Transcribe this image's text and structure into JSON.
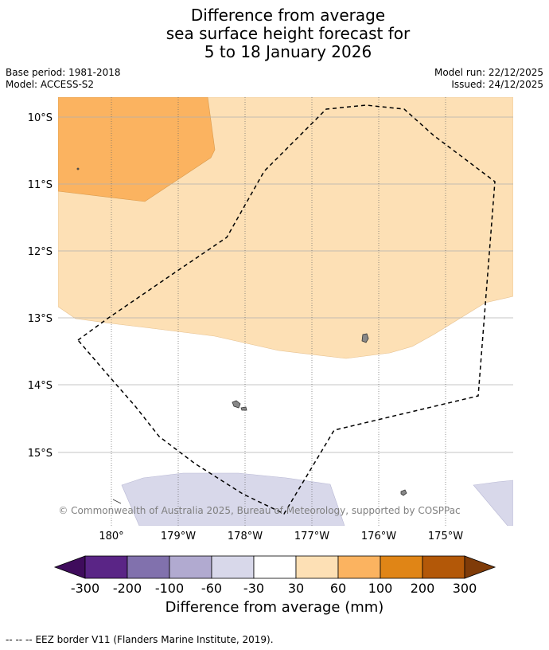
{
  "title": {
    "line1": "Difference from average",
    "line2": "sea surface height forecast for",
    "line3": "5 to 18 January 2026"
  },
  "meta": {
    "base_period": "Base period: 1981-2018",
    "model": "Model: ACCESS-S2",
    "model_run": "Model run: 22/12/2025",
    "issued": "Issued: 24/12/2025"
  },
  "map": {
    "lat_labels": [
      "10°S",
      "11°S",
      "12°S",
      "13°S",
      "14°S",
      "15°S"
    ],
    "lon_labels": [
      "180°",
      "179°W",
      "178°W",
      "177°W",
      "176°W",
      "175°W"
    ],
    "attribution": "© Commonwealth of Australia 2025, Bureau of Meteorology, supported by COSPPac",
    "category_colors": {
      "light_orange": "#fde0b5",
      "orange": "#fbb360",
      "light_purple": "#d8d8ea"
    }
  },
  "colorbar": {
    "title": "Difference from average (mm)",
    "labels": [
      "-300",
      "-200",
      "-100",
      "-60",
      "-30",
      "30",
      "60",
      "100",
      "200",
      "300"
    ],
    "colors": [
      "#3f0c5c",
      "#5a2586",
      "#8171ad",
      "#b1aad0",
      "#d8d8ea",
      "#ffffff",
      "#fde0b5",
      "#fbb360",
      "#e08516",
      "#b35808",
      "#7f3b08"
    ]
  },
  "footer": {
    "legend_symbol": "--  --  --",
    "legend_text": "EEZ border V11 (Flanders Marine Institute, 2019)."
  }
}
